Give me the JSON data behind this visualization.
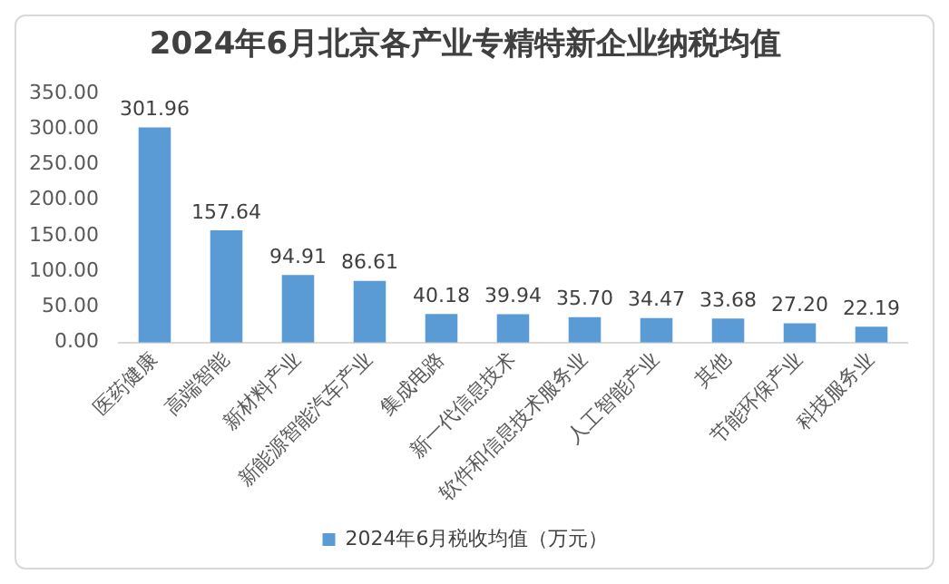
{
  "chart_data": {
    "type": "bar",
    "title": "2024年6月北京各产业专精特新企业纳税均值",
    "categories": [
      "医药健康",
      "高端智能",
      "新材料产业",
      "新能源智能汽车产业",
      "集成电路",
      "新一代信息技术",
      "软件和信息技术服务业",
      "人工智能产业",
      "其他",
      "节能环保产业",
      "科技服务业"
    ],
    "series": [
      {
        "name": "2024年6月税收均值（万元）",
        "color": "#5b9bd5",
        "values": [
          301.96,
          157.64,
          94.91,
          86.61,
          40.18,
          39.94,
          35.7,
          34.47,
          33.68,
          27.2,
          22.19
        ],
        "value_labels": [
          "301.96",
          "157.64",
          "94.91",
          "86.61",
          "40.18",
          "39.94",
          "35.70",
          "34.47",
          "33.68",
          "27.20",
          "22.19"
        ]
      }
    ],
    "ylim": [
      0,
      350
    ],
    "yticks": [
      {
        "value": 0,
        "label": "0.00"
      },
      {
        "value": 50,
        "label": "50.00"
      },
      {
        "value": 100,
        "label": "100.00"
      },
      {
        "value": 150,
        "label": "150.00"
      },
      {
        "value": 200,
        "label": "200.00"
      },
      {
        "value": 250,
        "label": "250.00"
      },
      {
        "value": 300,
        "label": "300.00"
      },
      {
        "value": 350,
        "label": "350.00"
      }
    ],
    "grid": false,
    "legend": "bottom"
  }
}
